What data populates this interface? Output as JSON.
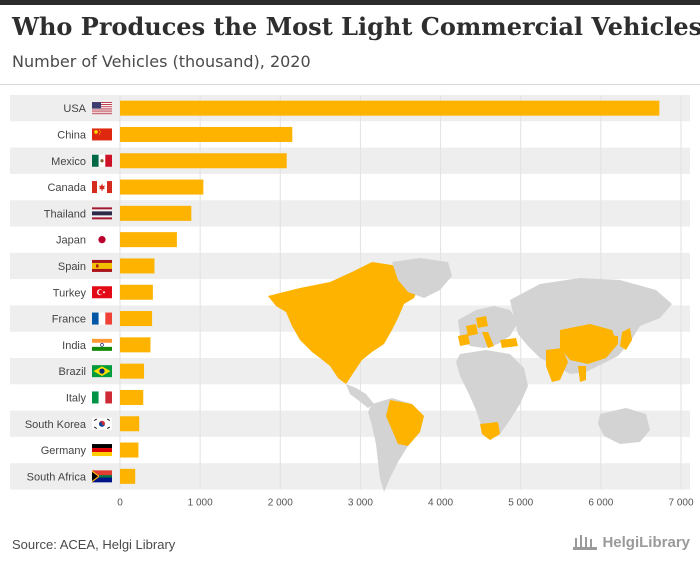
{
  "header": {
    "title": "Who Produces the Most Light Commercial Vehicles?",
    "subtitle": "Number of Vehicles (thousand), 2020"
  },
  "footer": {
    "source": "Source: ACEA, Helgi Library",
    "brand": "HelgiLibrary"
  },
  "colors": {
    "bar": "#FDB300",
    "map_highlight": "#FDB300",
    "map_base": "#D3D3D3",
    "stripe": "#EEEEEE"
  },
  "chart_data": {
    "type": "bar",
    "orientation": "horizontal",
    "categories": [
      "USA",
      "China",
      "Mexico",
      "Canada",
      "Thailand",
      "Japan",
      "Spain",
      "Turkey",
      "France",
      "India",
      "Brazil",
      "Italy",
      "South Korea",
      "Germany",
      "South Africa"
    ],
    "values": [
      6730,
      2150,
      2080,
      1040,
      890,
      710,
      430,
      410,
      400,
      380,
      300,
      290,
      240,
      230,
      190
    ],
    "xlim": [
      0,
      7000
    ],
    "xticks": [
      0,
      1000,
      2000,
      3000,
      4000,
      5000,
      6000,
      7000
    ],
    "xtick_labels": [
      "0",
      "1 000",
      "2 000",
      "3 000",
      "4 000",
      "5 000",
      "6 000",
      "7 000"
    ],
    "grid": true,
    "flag_icons": [
      "us-flag-icon",
      "china-flag-icon",
      "mexico-flag-icon",
      "canada-flag-icon",
      "thailand-flag-icon",
      "japan-flag-icon",
      "spain-flag-icon",
      "turkey-flag-icon",
      "france-flag-icon",
      "india-flag-icon",
      "brazil-flag-icon",
      "italy-flag-icon",
      "south-korea-flag-icon",
      "germany-flag-icon",
      "south-africa-flag-icon"
    ]
  }
}
